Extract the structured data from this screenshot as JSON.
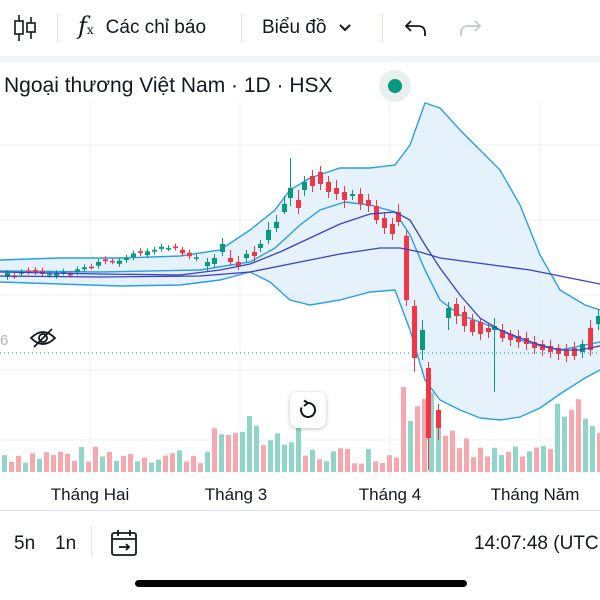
{
  "toolbar": {
    "indicators_label": "Các chỉ báo",
    "chart_type_label": "Biểu đồ",
    "icons": [
      "candles-icon",
      "function-icon",
      "chevron-down-icon",
      "undo-icon",
      "redo-icon"
    ]
  },
  "symbol": {
    "title": "Ngoại thương Việt Nam · 1D · HSX",
    "status": "market-open"
  },
  "chart_data": {
    "type": "candlestick",
    "x_labels": [
      "Tháng Hai",
      "Tháng 3",
      "Tháng 4",
      "Tháng Năm"
    ],
    "price_label_partial": "6",
    "overlays": [
      "bollinger-bands",
      "moving-averages"
    ],
    "colors": {
      "up": "#089981",
      "down": "#f23645",
      "volume_up": "#8fd6c9",
      "volume_down": "#f7a7ae",
      "band_fill": "#e1f0fa",
      "band_line": "#2a9ee6",
      "ma": "#3b3fc9"
    }
  },
  "bottom": {
    "range_5d": "5n",
    "range_1m": "1n",
    "clock": "14:07:48 (UTC"
  }
}
